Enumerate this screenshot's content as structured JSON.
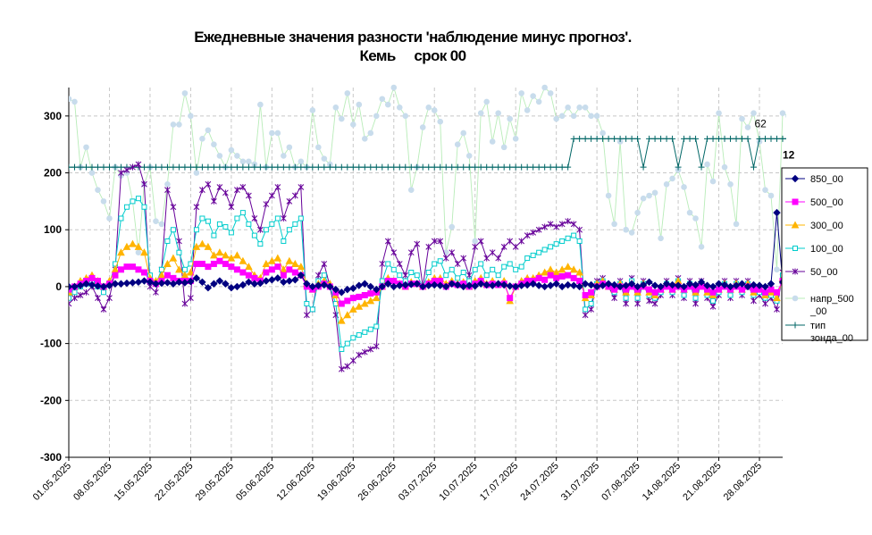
{
  "chart_data": {
    "type": "line",
    "title": "Ежедневные значения разности 'наблюдение минус прогноз'.",
    "subtitle": "Кемь     срок 00",
    "ylim": [
      -300,
      350
    ],
    "yticks": [
      -300,
      -200,
      -100,
      0,
      100,
      200,
      300
    ],
    "grid": true,
    "legend_position": "right",
    "x_start": "2025-05-01",
    "n_days": 124,
    "x_ticks": [
      "01.05.2025",
      "08.05.2025",
      "15.05.2025",
      "22.05.2025",
      "29.05.2025",
      "05.06.2025",
      "12.06.2025",
      "19.06.2025",
      "26.06.2025",
      "03.07.2025",
      "10.07.2025",
      "17.07.2025",
      "24.07.2025",
      "31.07.2025",
      "07.08.2025",
      "14.08.2025",
      "21.08.2025",
      "28.08.2025"
    ],
    "annotations": [
      {
        "text": "62",
        "x": "29.08.2025",
        "y": 280
      },
      {
        "text": "12",
        "x": "01.09.2025",
        "y": 225
      }
    ],
    "series": [
      {
        "name": "850_00",
        "color": "#000080",
        "marker": "diamond",
        "values": [
          0,
          0,
          2,
          5,
          3,
          1,
          0,
          2,
          5,
          5,
          6,
          7,
          8,
          10,
          8,
          5,
          6,
          7,
          5,
          8,
          7,
          9,
          15,
          8,
          -2,
          5,
          10,
          5,
          -2,
          0,
          3,
          8,
          5,
          6,
          10,
          12,
          15,
          8,
          10,
          12,
          20,
          5,
          0,
          2,
          3,
          0,
          -5,
          -10,
          -5,
          -3,
          2,
          5,
          0,
          -5,
          0,
          5,
          0,
          2,
          3,
          4,
          5,
          0,
          2,
          3,
          2,
          0,
          5,
          3,
          0,
          2,
          1,
          5,
          3,
          2,
          5,
          3,
          1,
          0,
          2,
          3,
          5,
          2,
          0,
          2,
          5,
          0,
          3,
          2,
          0,
          5,
          3,
          0,
          2,
          5,
          3,
          0,
          2,
          5,
          0,
          3,
          8,
          2,
          0,
          5,
          3,
          2,
          0,
          5,
          3,
          8,
          2,
          0,
          5,
          3,
          0,
          2,
          5,
          0,
          3,
          2,
          0,
          5,
          130,
          8
        ]
      },
      {
        "name": "500_00",
        "color": "#ff00ff",
        "marker": "square",
        "values": [
          -5,
          0,
          5,
          10,
          15,
          10,
          0,
          5,
          20,
          30,
          35,
          35,
          30,
          25,
          10,
          5,
          10,
          20,
          15,
          10,
          10,
          10,
          40,
          40,
          35,
          40,
          45,
          40,
          35,
          30,
          25,
          20,
          15,
          10,
          25,
          30,
          35,
          20,
          30,
          25,
          20,
          0,
          -5,
          0,
          5,
          0,
          -10,
          -30,
          -25,
          -20,
          -18,
          -15,
          -12,
          -10,
          0,
          10,
          10,
          5,
          0,
          5,
          5,
          0,
          5,
          10,
          10,
          0,
          5,
          3,
          5,
          0,
          5,
          10,
          3,
          5,
          3,
          5,
          -20,
          0,
          5,
          10,
          10,
          15,
          12,
          20,
          15,
          18,
          20,
          15,
          10,
          -15,
          -10,
          0,
          5,
          0,
          -5,
          0,
          -5,
          0,
          -5,
          0,
          -5,
          -10,
          -5,
          0,
          -5,
          0,
          -5,
          0,
          -5,
          0,
          -5,
          -10,
          -5,
          0,
          -5,
          0,
          -5,
          0,
          -5,
          -5,
          -10,
          -5,
          -10,
          10
        ]
      },
      {
        "name": "300_00",
        "color": "#ffb400",
        "marker": "triangle",
        "values": [
          -10,
          0,
          10,
          15,
          20,
          10,
          0,
          10,
          30,
          60,
          70,
          75,
          70,
          60,
          15,
          10,
          20,
          40,
          50,
          30,
          20,
          25,
          70,
          75,
          70,
          55,
          60,
          55,
          50,
          55,
          45,
          35,
          20,
          15,
          40,
          45,
          50,
          30,
          45,
          40,
          35,
          5,
          -5,
          5,
          10,
          5,
          -15,
          -60,
          -50,
          -40,
          -35,
          -30,
          -25,
          -20,
          0,
          15,
          10,
          5,
          0,
          8,
          5,
          0,
          8,
          15,
          15,
          5,
          10,
          5,
          8,
          0,
          10,
          15,
          5,
          10,
          5,
          10,
          -25,
          0,
          10,
          15,
          15,
          20,
          25,
          30,
          25,
          30,
          35,
          30,
          25,
          -20,
          -15,
          5,
          10,
          0,
          -5,
          5,
          -10,
          5,
          -10,
          5,
          -10,
          -15,
          -5,
          5,
          -5,
          10,
          -5,
          5,
          -10,
          5,
          -10,
          -15,
          -5,
          5,
          -5,
          5,
          -5,
          5,
          -10,
          -5,
          -15,
          -10,
          -20,
          15
        ]
      },
      {
        "name": "100_00",
        "color": "#00cccc",
        "marker": "square-open",
        "values": [
          -20,
          -10,
          0,
          5,
          10,
          0,
          -10,
          5,
          40,
          120,
          140,
          150,
          155,
          140,
          20,
          5,
          30,
          80,
          100,
          60,
          30,
          40,
          100,
          120,
          115,
          90,
          110,
          105,
          95,
          120,
          130,
          110,
          90,
          75,
          100,
          110,
          120,
          80,
          100,
          110,
          120,
          -30,
          -40,
          10,
          20,
          0,
          -30,
          -110,
          -100,
          -90,
          -85,
          -80,
          -75,
          -70,
          10,
          40,
          30,
          20,
          10,
          25,
          20,
          0,
          25,
          40,
          45,
          20,
          30,
          15,
          25,
          10,
          30,
          40,
          20,
          30,
          20,
          35,
          40,
          30,
          35,
          50,
          55,
          60,
          65,
          70,
          75,
          80,
          85,
          90,
          80,
          -40,
          -30,
          5,
          10,
          0,
          -10,
          5,
          -20,
          10,
          -20,
          5,
          -15,
          -20,
          -10,
          5,
          -10,
          10,
          -15,
          5,
          -20,
          5,
          -15,
          -25,
          -10,
          5,
          -15,
          5,
          -10,
          5,
          -15,
          -10,
          -20,
          -15,
          -25,
          20
        ]
      },
      {
        "name": "50_00",
        "color": "#660099",
        "marker": "star",
        "values": [
          -30,
          -20,
          -15,
          -10,
          0,
          -20,
          -40,
          -20,
          30,
          200,
          205,
          210,
          215,
          180,
          0,
          -10,
          30,
          170,
          140,
          80,
          -30,
          -20,
          140,
          170,
          180,
          150,
          175,
          165,
          140,
          170,
          175,
          160,
          120,
          100,
          145,
          160,
          175,
          120,
          150,
          160,
          175,
          -50,
          -40,
          20,
          40,
          0,
          -50,
          -145,
          -140,
          -130,
          -120,
          -115,
          -110,
          -105,
          40,
          80,
          60,
          40,
          20,
          60,
          75,
          0,
          70,
          80,
          80,
          50,
          60,
          40,
          50,
          20,
          70,
          80,
          50,
          60,
          50,
          70,
          80,
          70,
          80,
          90,
          95,
          100,
          105,
          110,
          105,
          110,
          115,
          110,
          100,
          -50,
          -40,
          10,
          15,
          0,
          -20,
          10,
          -30,
          15,
          -30,
          10,
          -25,
          -30,
          -15,
          10,
          -15,
          15,
          -20,
          10,
          -30,
          10,
          -20,
          -35,
          -15,
          10,
          -20,
          10,
          -15,
          10,
          -25,
          -15,
          -30,
          -20,
          -40,
          25
        ]
      },
      {
        "name": "напр_500_00",
        "color": "#aaeeaa",
        "marker": "circle",
        "values": [
          330,
          325,
          210,
          245,
          200,
          170,
          150,
          120,
          210,
          195,
          200,
          150,
          60,
          180,
          210,
          115,
          110,
          180,
          285,
          285,
          340,
          300,
          200,
          260,
          275,
          250,
          230,
          210,
          240,
          230,
          220,
          220,
          215,
          320,
          210,
          270,
          270,
          230,
          245,
          210,
          220,
          210,
          310,
          245,
          225,
          215,
          315,
          295,
          340,
          285,
          320,
          260,
          270,
          300,
          330,
          320,
          350,
          315,
          300,
          170,
          210,
          280,
          315,
          310,
          290,
          60,
          105,
          250,
          270,
          230,
          80,
          305,
          325,
          255,
          305,
          245,
          295,
          260,
          340,
          310,
          335,
          325,
          350,
          340,
          295,
          300,
          315,
          300,
          315,
          315,
          300,
          300,
          270,
          160,
          110,
          255,
          100,
          95,
          130,
          155,
          160,
          165,
          85,
          180,
          190,
          205,
          175,
          130,
          120,
          70,
          215,
          185,
          305,
          210,
          180,
          110,
          295,
          280,
          305,
          255,
          170,
          160,
          30,
          305,
          300,
          310
        ]
      },
      {
        "name": "тип зонда_00",
        "color": "#006666",
        "marker": "plus",
        "values": [
          210,
          210,
          210,
          210,
          210,
          210,
          210,
          210,
          210,
          210,
          210,
          210,
          210,
          210,
          210,
          210,
          210,
          210,
          210,
          210,
          210,
          210,
          210,
          210,
          210,
          210,
          210,
          210,
          210,
          210,
          210,
          210,
          210,
          210,
          210,
          210,
          210,
          210,
          210,
          210,
          210,
          210,
          210,
          210,
          210,
          210,
          210,
          210,
          210,
          210,
          210,
          210,
          210,
          210,
          210,
          210,
          210,
          210,
          210,
          210,
          210,
          210,
          210,
          210,
          210,
          210,
          210,
          210,
          210,
          210,
          210,
          210,
          210,
          210,
          210,
          210,
          210,
          210,
          210,
          210,
          210,
          210,
          210,
          210,
          210,
          210,
          210,
          260,
          260,
          260,
          260,
          260,
          260,
          260,
          260,
          260,
          260,
          260,
          260,
          210,
          260,
          260,
          260,
          260,
          260,
          210,
          260,
          260,
          260,
          210,
          260,
          260,
          260,
          260,
          260,
          260,
          260,
          260,
          210,
          260,
          260,
          260,
          260,
          260,
          260,
          210,
          210,
          210
        ]
      }
    ]
  },
  "legend": {
    "items": [
      {
        "label": "850_00",
        "series": 0
      },
      {
        "label": "500_00",
        "series": 1
      },
      {
        "label": "300_00",
        "series": 2
      },
      {
        "label": "100_00",
        "series": 3
      },
      {
        "label": "50_00",
        "series": 4
      },
      {
        "label": "напр_500_00",
        "series": 5,
        "lines": [
          "напр_500",
          "_00"
        ]
      },
      {
        "label": "тип зонда_00",
        "series": 6,
        "lines": [
          "тип",
          "зонда_00"
        ]
      }
    ]
  }
}
